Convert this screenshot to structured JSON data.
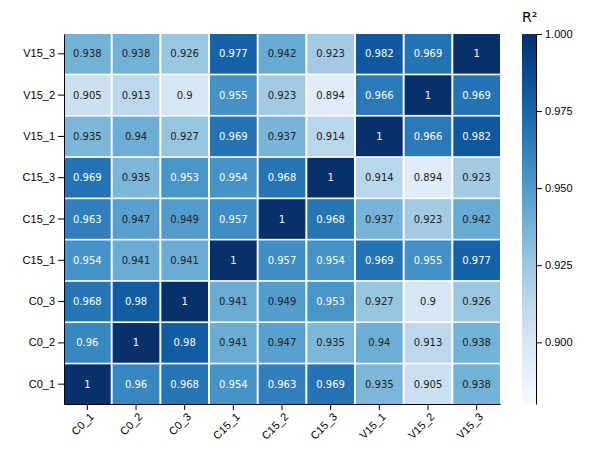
{
  "chart_data": {
    "type": "heatmap",
    "x_categories": [
      "C0_1",
      "C0_2",
      "C0_3",
      "C15_1",
      "C15_2",
      "C15_3",
      "V15_1",
      "V15_2",
      "V15_3"
    ],
    "y_categories": [
      "V15_3",
      "V15_2",
      "V15_1",
      "C15_3",
      "C15_2",
      "C15_1",
      "C0_3",
      "C0_2",
      "C0_1"
    ],
    "values": [
      [
        0.938,
        0.938,
        0.926,
        0.977,
        0.942,
        0.923,
        0.982,
        0.969,
        1.0
      ],
      [
        0.905,
        0.913,
        0.9,
        0.955,
        0.923,
        0.894,
        0.966,
        1.0,
        0.969
      ],
      [
        0.935,
        0.94,
        0.927,
        0.969,
        0.937,
        0.914,
        1.0,
        0.966,
        0.982
      ],
      [
        0.969,
        0.935,
        0.953,
        0.954,
        0.968,
        1.0,
        0.914,
        0.894,
        0.923
      ],
      [
        0.963,
        0.947,
        0.949,
        0.957,
        1.0,
        0.968,
        0.937,
        0.923,
        0.942
      ],
      [
        0.954,
        0.941,
        0.941,
        1.0,
        0.957,
        0.954,
        0.969,
        0.955,
        0.977
      ],
      [
        0.968,
        0.98,
        1.0,
        0.941,
        0.949,
        0.953,
        0.927,
        0.9,
        0.926
      ],
      [
        0.96,
        1.0,
        0.98,
        0.941,
        0.947,
        0.935,
        0.94,
        0.913,
        0.938
      ],
      [
        1.0,
        0.96,
        0.968,
        0.954,
        0.963,
        0.969,
        0.935,
        0.905,
        0.938
      ]
    ],
    "data_labels": true,
    "color_range": [
      0.88,
      1.0
    ],
    "color_ticks": [
      {
        "value": 1.0,
        "label": "1.000"
      },
      0.975,
      {
        "value": 0.95,
        "label": "0.950"
      },
      0.925,
      {
        "value": 0.9,
        "label": "0.900"
      }
    ],
    "color_label": "R²"
  }
}
